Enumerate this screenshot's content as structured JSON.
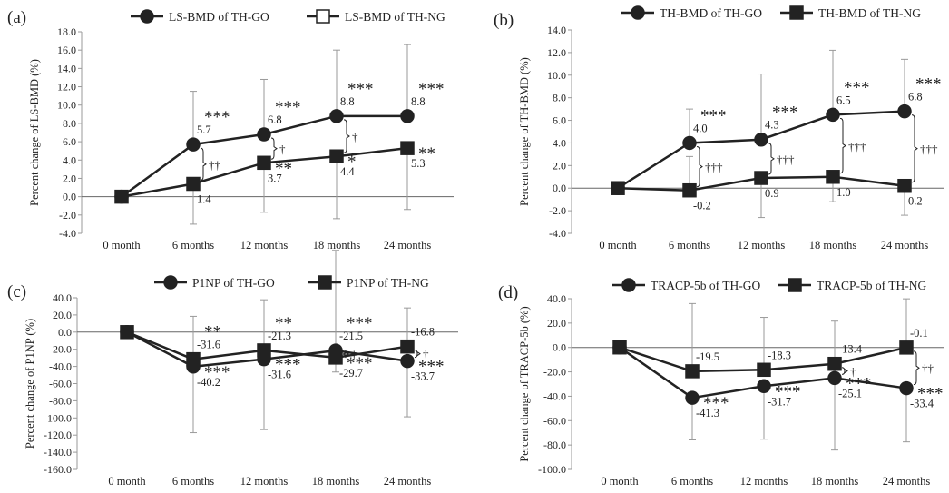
{
  "chart_data": [
    {
      "panel_label": "(a)",
      "type": "line",
      "categories": [
        "0 month",
        "6 months",
        "12 months",
        "18 months",
        "24 months"
      ],
      "ylabel": "Percent change of LS-BMD (%)",
      "ylim": [
        -4.0,
        18.0
      ],
      "ytick_step": 2.0,
      "yticks": [
        "18.0",
        "16.0",
        "14.0",
        "12.0",
        "10.0",
        "8.0",
        "6.0",
        "4.0",
        "2.0",
        "0.0",
        "-2.0",
        "-4.0"
      ],
      "series": [
        {
          "name": "LS-BMD of TH-GO",
          "marker": "circle",
          "fill": "#222222",
          "values": [
            0,
            5.7,
            6.8,
            8.8,
            8.8
          ],
          "errors": [
            0,
            5.8,
            6.0,
            7.2,
            7.8
          ],
          "value_labels": [
            "",
            "5.7",
            "6.8",
            "8.8",
            "8.8"
          ],
          "significance": [
            "",
            "***",
            "***",
            "***",
            "***"
          ]
        },
        {
          "name": "LS-BMD of TH-NG",
          "marker": "square",
          "fill": "#222222",
          "values": [
            0,
            1.4,
            3.7,
            4.4,
            5.3
          ],
          "errors": [
            0,
            4.4,
            5.4,
            6.8,
            6.7
          ],
          "value_labels": [
            "",
            "1.4",
            "3.7",
            "4.4",
            "5.3"
          ],
          "significance": [
            "",
            "",
            "**",
            "*",
            "**"
          ]
        }
      ],
      "legend_marker_fill": [
        "#222222",
        "#ffffff"
      ],
      "group_diff": [
        "",
        "††",
        "†",
        "†",
        ""
      ]
    },
    {
      "panel_label": "(b)",
      "type": "line",
      "categories": [
        "0 month",
        "6 months",
        "12 months",
        "18 months",
        "24 months"
      ],
      "ylabel": "Percent change of TH-BMD (%)",
      "ylim": [
        -4.0,
        14.0
      ],
      "ytick_step": 2.0,
      "yticks": [
        "14.0",
        "12.0",
        "10.0",
        "8.0",
        "6.0",
        "4.0",
        "2.0",
        "0.0",
        "-2.0",
        "-4.0"
      ],
      "series": [
        {
          "name": "TH-BMD of TH-GO",
          "marker": "circle",
          "fill": "#222222",
          "values": [
            0,
            4.0,
            4.3,
            6.5,
            6.8
          ],
          "errors": [
            0,
            3.0,
            5.8,
            5.7,
            4.6
          ],
          "value_labels": [
            "",
            "4.0",
            "4.3",
            "6.5",
            "6.8"
          ],
          "significance": [
            "",
            "***",
            "***",
            "***",
            "***"
          ]
        },
        {
          "name": "TH-BMD of TH-NG",
          "marker": "square",
          "fill": "#222222",
          "values": [
            0,
            -0.2,
            0.9,
            1.0,
            0.2
          ],
          "errors": [
            0,
            3.0,
            3.5,
            2.2,
            2.6
          ],
          "value_labels": [
            "",
            "-0.2",
            "0.9",
            "1.0",
            "0.2"
          ],
          "significance": [
            "",
            "",
            "",
            "",
            ""
          ]
        }
      ],
      "legend_marker_fill": [
        "#222222",
        "#222222"
      ],
      "group_diff": [
        "",
        "†††",
        "†††",
        "†††",
        "†††"
      ]
    },
    {
      "panel_label": "(c)",
      "type": "line",
      "categories": [
        "0 month",
        "6 months",
        "12 months",
        "18 months",
        "24 months"
      ],
      "ylabel": "Percent change of P1NP (%)",
      "ylim": [
        -160.0,
        40.0
      ],
      "ytick_step": 20.0,
      "yticks": [
        "40.0",
        "20.0",
        "0.0",
        "-20.0",
        "-40.0",
        "-60.0",
        "-80.0",
        "-100.0",
        "-120.0",
        "-140.0",
        "-160.0"
      ],
      "series": [
        {
          "name": "P1NP of TH-GO",
          "marker": "circle",
          "fill": "#222222",
          "values": [
            0,
            -40.2,
            -31.6,
            -21.5,
            -33.7
          ],
          "errors": [
            0,
            77.0,
            82.0,
            25.0,
            65.0
          ],
          "value_labels": [
            "",
            "-40.2",
            "-31.6",
            "-21.5",
            "-33.7"
          ],
          "significance": [
            "",
            "***",
            "***",
            "***",
            "***"
          ]
        },
        {
          "name": "P1NP of TH-NG",
          "marker": "square",
          "fill": "#222222",
          "values": [
            0,
            -31.6,
            -21.3,
            -29.7,
            -16.8
          ],
          "errors": [
            0,
            50.0,
            59.0,
            125.0,
            45.0
          ],
          "value_labels": [
            "",
            "-31.6",
            "-21.3",
            "-29.7",
            "-16.8"
          ],
          "significance": [
            "",
            "**",
            "**",
            "***",
            ""
          ]
        }
      ],
      "legend_marker_fill": [
        "#222222",
        "#222222"
      ],
      "group_diff": [
        "",
        "",
        "",
        "†",
        "†"
      ]
    },
    {
      "panel_label": "(d)",
      "type": "line",
      "categories": [
        "0 month",
        "6 months",
        "12 months",
        "18 months",
        "24 months"
      ],
      "ylabel": "Percent change of TRACP-5b (%)",
      "ylim": [
        -100.0,
        40.0
      ],
      "ytick_step": 20.0,
      "yticks": [
        "40.0",
        "20.0",
        "0.0",
        "-20.0",
        "-40.0",
        "-60.0",
        "-80.0",
        "-100.0"
      ],
      "series": [
        {
          "name": "TRACP-5b of TH-GO",
          "marker": "circle",
          "fill": "#222222",
          "values": [
            0,
            -41.3,
            -31.7,
            -25.1,
            -33.4
          ],
          "errors": [
            0,
            34.5,
            43.5,
            59.0,
            44.0
          ],
          "value_labels": [
            "",
            "-41.3",
            "-31.7",
            "-25.1",
            "-33.4"
          ],
          "significance": [
            "",
            "***",
            "***",
            "***",
            "***"
          ]
        },
        {
          "name": "TRACP-5b of TH-NG",
          "marker": "square",
          "fill": "#222222",
          "values": [
            0,
            -19.5,
            -18.3,
            -13.4,
            -0.1
          ],
          "errors": [
            0,
            55.5,
            43.0,
            35.0,
            40.0
          ],
          "value_labels": [
            "",
            "-19.5",
            "-18.3",
            "-13.4",
            "-0.1"
          ],
          "significance": [
            "",
            "",
            "",
            "",
            ""
          ]
        }
      ],
      "legend_marker_fill": [
        "#222222",
        "#222222"
      ],
      "group_diff": [
        "",
        "",
        "",
        "†",
        "††"
      ]
    }
  ]
}
